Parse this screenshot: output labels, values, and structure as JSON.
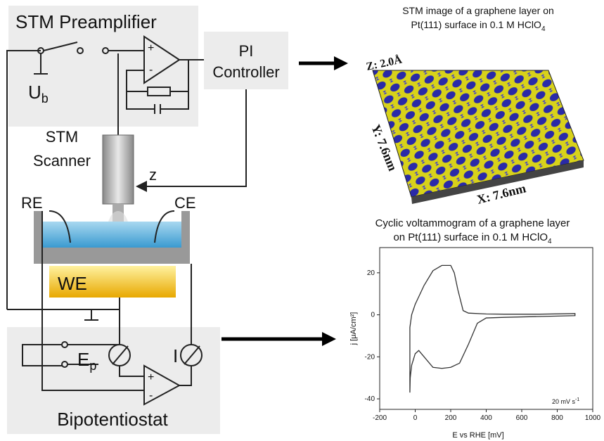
{
  "diagram": {
    "preamplifier": {
      "title": "STM Preamplifier",
      "bias": {
        "symbol": "U",
        "subscript": "b"
      },
      "plus": "+",
      "minus": "-"
    },
    "controller": {
      "lines": [
        "PI",
        "Controller"
      ]
    },
    "scanner": {
      "lines": [
        "STM",
        "Scanner"
      ],
      "z": "z"
    },
    "cell": {
      "re": "RE",
      "ce": "CE",
      "we": "WE"
    },
    "bipotentiostat": {
      "title": "Bipotentiostat",
      "potential": {
        "symbol": "E",
        "subscript": "p"
      },
      "current": "I",
      "plus": "+",
      "minus": "-"
    }
  },
  "stm_image": {
    "title_lines": [
      "STM image of a graphene layer on",
      "Pt(111) surface in 0.1 M HClO"
    ],
    "title_subscript": "4",
    "z_label": "Z: 2.0Å",
    "y_label": "Y: 7.6nm",
    "x_label": "X: 7.6nm"
  },
  "chart_data": {
    "type": "line",
    "title_lines": [
      "Cyclic voltammogram of a graphene layer",
      "on Pt(111) surface in 0.1 M HClO"
    ],
    "title_subscript": "4",
    "x_label": "E vs RHE [mV]",
    "y_label": "j [μA/cm²]",
    "annotation": {
      "text": "20 mV s",
      "superscript": "-1"
    },
    "color": "#333333",
    "x": [
      -30,
      -28,
      -20,
      0,
      20,
      50,
      100,
      150,
      200,
      250,
      300,
      350,
      400,
      500,
      700,
      900,
      900,
      700,
      500,
      400,
      300,
      270,
      240,
      220,
      200,
      150,
      100,
      50,
      0,
      -20,
      -30,
      -30
    ],
    "values": [
      -37,
      -30,
      -24,
      -18.5,
      -17,
      -20,
      -25,
      -25.5,
      -25,
      -23,
      -14,
      -4,
      -1.5,
      -1.2,
      -0.8,
      -0.4,
      0.6,
      0.3,
      0.3,
      0.4,
      0.8,
      2,
      12,
      20,
      23.5,
      23.5,
      21,
      14,
      5,
      0,
      -6,
      -37
    ],
    "xlim": [
      -200,
      1000
    ],
    "ylim": [
      -45,
      32
    ],
    "xticks": [
      -200,
      0,
      200,
      400,
      600,
      800,
      1000
    ],
    "yticks": [
      -40,
      -20,
      0,
      20
    ]
  }
}
